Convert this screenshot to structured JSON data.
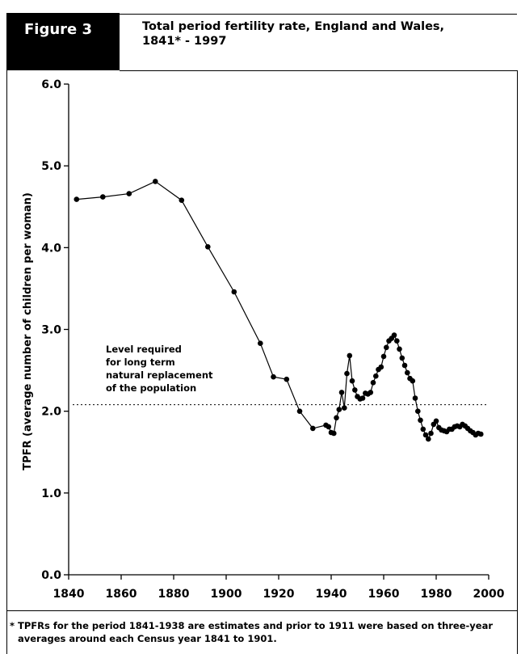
{
  "figure_label": "Figure 3",
  "footnote": {
    "line1": "* TPFRs for the period 1841-1938 are estimates and prior to 1911 were based on  three-year",
    "line2": "averages around each Census year 1841 to 1901."
  },
  "chart_data": {
    "type": "line",
    "title_line1": "Total period fertility rate, England and Wales,",
    "title_line2": "1841* - 1997",
    "ylabel": "TPFR (average number of children per woman)",
    "xlabel": "",
    "xlim": [
      1840,
      2000
    ],
    "ylim": [
      0,
      6
    ],
    "x_ticks": [
      1840,
      1860,
      1880,
      1900,
      1920,
      1940,
      1960,
      1980,
      2000
    ],
    "y_ticks": [
      {
        "value": 0,
        "label": "0.0"
      },
      {
        "value": 1,
        "label": "1.0"
      },
      {
        "value": 2,
        "label": "2.0"
      },
      {
        "value": 3,
        "label": "3.0"
      },
      {
        "value": 4,
        "label": "4.0"
      },
      {
        "value": 5,
        "label": "5.0"
      },
      {
        "value": 6,
        "label": "6.0"
      }
    ],
    "grid": false,
    "series": [
      {
        "points": [
          [
            1843,
            4.59
          ],
          [
            1853,
            4.62
          ],
          [
            1863,
            4.66
          ],
          [
            1873,
            4.81
          ],
          [
            1883,
            4.58
          ],
          [
            1893,
            4.01
          ],
          [
            1903,
            3.46
          ],
          [
            1913,
            2.83
          ],
          [
            1918,
            2.42
          ],
          [
            1923,
            2.39
          ],
          [
            1928,
            2.0
          ],
          [
            1933,
            1.79
          ],
          [
            1938,
            1.83
          ],
          [
            1939,
            1.81
          ],
          [
            1940,
            1.74
          ],
          [
            1941,
            1.73
          ],
          [
            1942,
            1.92
          ],
          [
            1943,
            2.02
          ],
          [
            1944,
            2.23
          ],
          [
            1945,
            2.04
          ],
          [
            1946,
            2.46
          ],
          [
            1947,
            2.68
          ],
          [
            1948,
            2.37
          ],
          [
            1949,
            2.26
          ],
          [
            1950,
            2.18
          ],
          [
            1951,
            2.15
          ],
          [
            1952,
            2.16
          ],
          [
            1953,
            2.22
          ],
          [
            1954,
            2.21
          ],
          [
            1955,
            2.23
          ],
          [
            1956,
            2.35
          ],
          [
            1957,
            2.43
          ],
          [
            1958,
            2.51
          ],
          [
            1959,
            2.54
          ],
          [
            1960,
            2.67
          ],
          [
            1961,
            2.78
          ],
          [
            1962,
            2.86
          ],
          [
            1963,
            2.89
          ],
          [
            1964,
            2.93
          ],
          [
            1965,
            2.86
          ],
          [
            1966,
            2.76
          ],
          [
            1967,
            2.65
          ],
          [
            1968,
            2.56
          ],
          [
            1969,
            2.47
          ],
          [
            1970,
            2.4
          ],
          [
            1971,
            2.37
          ],
          [
            1972,
            2.16
          ],
          [
            1973,
            2.0
          ],
          [
            1974,
            1.89
          ],
          [
            1975,
            1.78
          ],
          [
            1976,
            1.71
          ],
          [
            1977,
            1.66
          ],
          [
            1978,
            1.73
          ],
          [
            1979,
            1.84
          ],
          [
            1980,
            1.88
          ],
          [
            1981,
            1.8
          ],
          [
            1982,
            1.77
          ],
          [
            1983,
            1.76
          ],
          [
            1984,
            1.75
          ],
          [
            1985,
            1.78
          ],
          [
            1986,
            1.78
          ],
          [
            1987,
            1.81
          ],
          [
            1988,
            1.82
          ],
          [
            1989,
            1.81
          ],
          [
            1990,
            1.84
          ],
          [
            1991,
            1.82
          ],
          [
            1992,
            1.79
          ],
          [
            1993,
            1.76
          ],
          [
            1994,
            1.74
          ],
          [
            1995,
            1.71
          ],
          [
            1996,
            1.73
          ],
          [
            1997,
            1.72
          ]
        ]
      }
    ],
    "reference_line": {
      "value": 2.08,
      "style": "dotted",
      "label_lines": [
        "Level required",
        "for long term",
        "natural replacement",
        "of the population"
      ]
    },
    "line_color": "#000000",
    "marker_color": "#000000"
  }
}
